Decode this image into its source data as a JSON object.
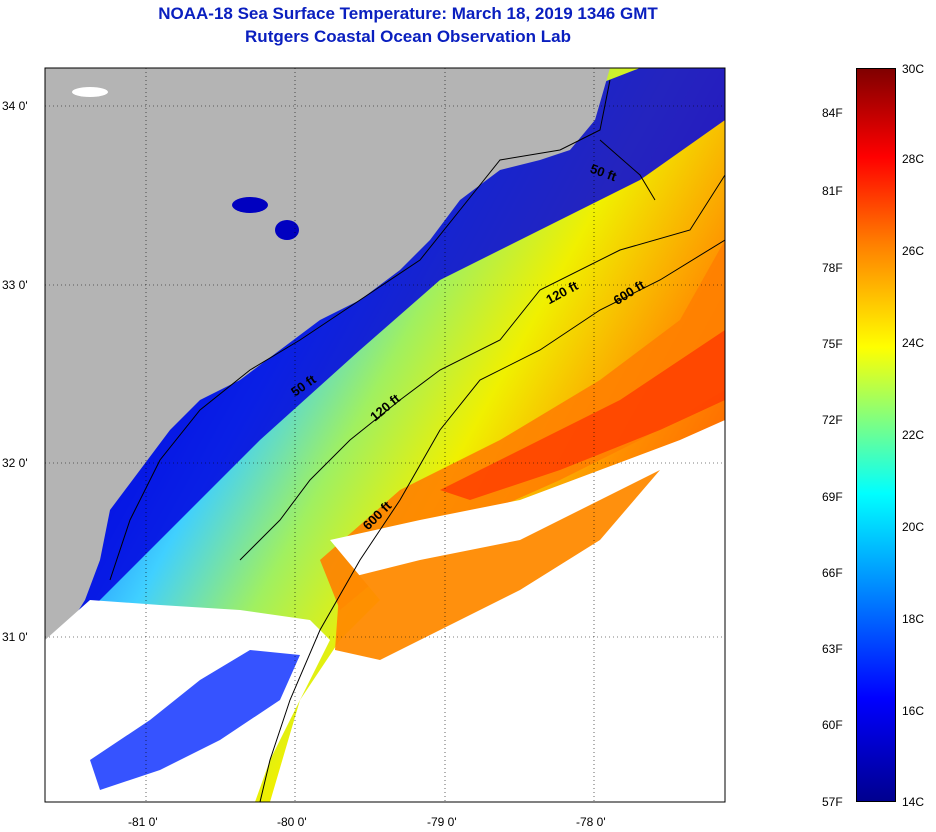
{
  "title_line1": "NOAA-18 Sea Surface Temperature:  March 18, 2019 1346 GMT",
  "title_line2": "Rutgers Coastal Ocean Observation Lab",
  "lat_labels": [
    "34 0'",
    "33 0'",
    "32 0'",
    "31 0'"
  ],
  "lon_labels": [
    "-81 0'",
    "-80 0'",
    "-79 0'",
    "-78 0'"
  ],
  "contour_labels": {
    "c50a": "50 ft",
    "c50b": "50 ft",
    "c120a": "120 ft",
    "c120b": "120 ft",
    "c600a": "600 ft",
    "c600b": "600 ft"
  },
  "colorbar": {
    "celsius": [
      "30C",
      "28C",
      "26C",
      "24C",
      "22C",
      "20C",
      "18C",
      "16C",
      "14C"
    ],
    "fahrenheit": [
      "84F",
      "81F",
      "78F",
      "75F",
      "72F",
      "69F",
      "66F",
      "63F",
      "60F",
      "57F"
    ]
  },
  "colors": {
    "land": "#b4b4b4",
    "cloud_mask": "#ffffff",
    "title": "#0a1fbf"
  }
}
